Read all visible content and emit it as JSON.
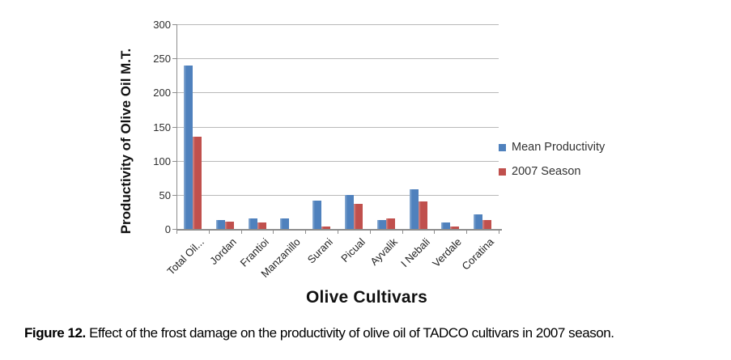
{
  "figure": {
    "caption_label": "Figure 12.",
    "caption_text": " Effect of the frost damage on the productivity of olive oil of TADCO cultivars in 2007 season."
  },
  "chart_data": {
    "type": "bar",
    "title": "",
    "xlabel": "Olive Cultivars",
    "ylabel": "Productivity of Olive Oil M.T.",
    "ylim": [
      0,
      300
    ],
    "yticks": [
      0,
      50,
      100,
      150,
      200,
      250,
      300
    ],
    "grid": true,
    "legend_position": "right-middle",
    "categories": [
      "Total Oil...",
      "Jordan",
      "Frantioi",
      "Manzanillo",
      "Surani",
      "Picual",
      "Ayvalik",
      "I Nebali",
      "Verdale",
      "Coratina"
    ],
    "series": [
      {
        "name": "Mean Productivity",
        "color": "#4f81bd",
        "edge_color": "#8fafd4",
        "values": [
          240,
          13,
          15,
          15,
          41,
          50,
          13,
          58,
          10,
          21
        ]
      },
      {
        "name": "2007 Season",
        "color": "#c0504d",
        "edge_color": "#d28f8c",
        "values": [
          135,
          11,
          9,
          0,
          4,
          37,
          15,
          40,
          3,
          13
        ]
      }
    ]
  },
  "colors": {
    "gridline": "#b9b9b9",
    "axis": "#8d8d8d",
    "tick_text": "#2e2e2e",
    "background": "#ffffff"
  }
}
